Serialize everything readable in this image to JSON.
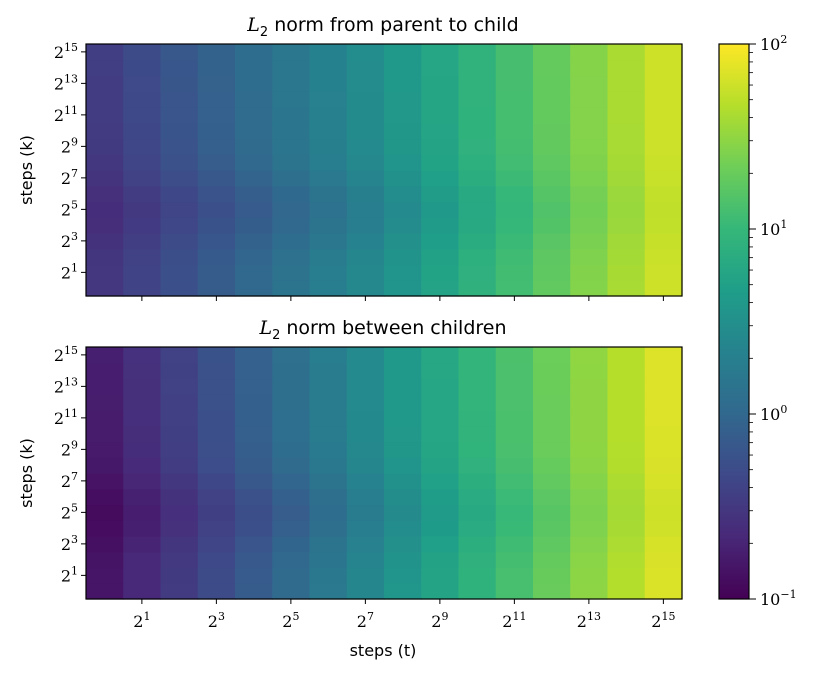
{
  "chart_data": [
    {
      "type": "heatmap",
      "title": "norm from parent to child",
      "title_math": "L",
      "title_math_sub": "2",
      "xlabel": "",
      "ylabel": "steps (k)",
      "x": [
        1,
        2,
        4,
        8,
        16,
        32,
        64,
        128,
        256,
        512,
        1024,
        2048,
        4096,
        8192,
        16384,
        32768
      ],
      "y": [
        1,
        2,
        4,
        8,
        16,
        32,
        64,
        128,
        256,
        512,
        1024,
        2048,
        4096,
        8192,
        16384,
        32768
      ],
      "x_axis": "log2",
      "y_axis": "log2",
      "y_tick_exponents": [
        1,
        3,
        5,
        7,
        9,
        11,
        13,
        15
      ],
      "colormap": "viridis",
      "value_summary": {
        "low_t_values": 0.3,
        "mid_t_values": 3,
        "high_t_values": 60
      }
    },
    {
      "type": "heatmap",
      "title": "norm between children",
      "title_math": "L",
      "title_math_sub": "2",
      "xlabel": "steps (t)",
      "ylabel": "steps (k)",
      "x": [
        1,
        2,
        4,
        8,
        16,
        32,
        64,
        128,
        256,
        512,
        1024,
        2048,
        4096,
        8192,
        16384,
        32768
      ],
      "y": [
        1,
        2,
        4,
        8,
        16,
        32,
        64,
        128,
        256,
        512,
        1024,
        2048,
        4096,
        8192,
        16384,
        32768
      ],
      "x_axis": "log2",
      "y_axis": "log2",
      "x_tick_exponents": [
        1,
        3,
        5,
        7,
        9,
        11,
        13,
        15
      ],
      "y_tick_exponents": [
        1,
        3,
        5,
        7,
        9,
        11,
        13,
        15
      ],
      "colormap": "viridis",
      "value_summary": {
        "low_t_values": 0.15,
        "mid_t_values": 3,
        "high_t_values": 70
      }
    }
  ],
  "colorbar": {
    "scale": "log",
    "range": [
      0.1,
      100
    ],
    "tick_labels": [
      {
        "base": "10",
        "exp": "2",
        "value": 100
      },
      {
        "base": "10",
        "exp": "1",
        "value": 10
      },
      {
        "base": "10",
        "exp": "0",
        "value": 1
      },
      {
        "base": "10",
        "exp": "−1",
        "value": 0.1
      }
    ],
    "colormap": "viridis"
  }
}
